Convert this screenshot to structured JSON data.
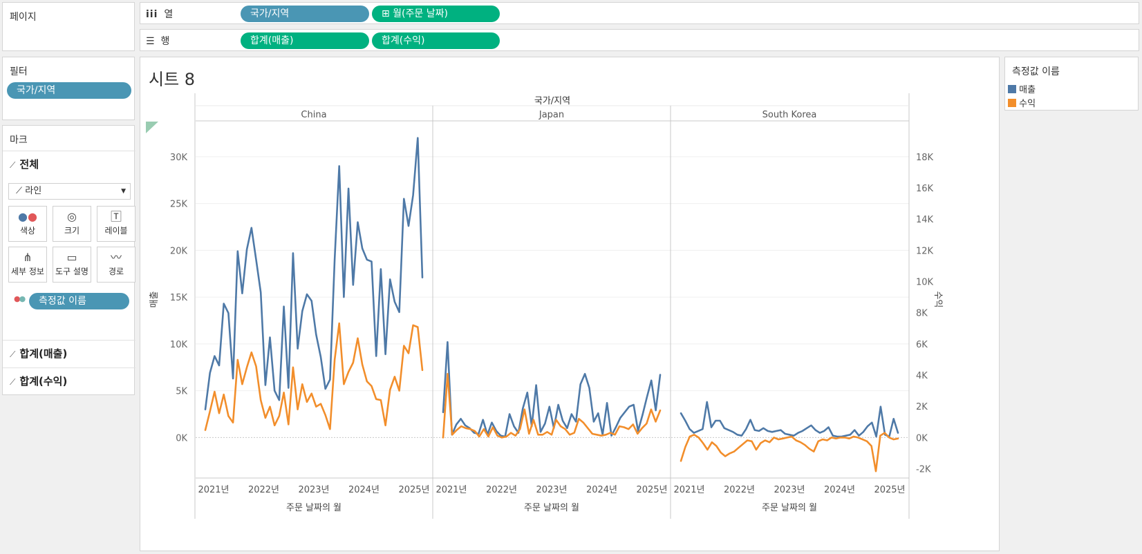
{
  "pages": {
    "title": "페이지"
  },
  "columns_shelf": {
    "label": "열",
    "icon": "columns-icon",
    "pills": [
      "국가/지역",
      "⊞ 월(주문 날짜)"
    ]
  },
  "rows_shelf": {
    "label": "행",
    "icon": "rows-icon",
    "pills": [
      "합계(매출)",
      "합계(수익)"
    ]
  },
  "filters": {
    "title": "필터",
    "pills": [
      "국가/지역"
    ]
  },
  "marks": {
    "title": "마크",
    "all_label": "전체",
    "mark_type": "라인",
    "buttons": [
      {
        "label": "색상",
        "icon": "color-icon"
      },
      {
        "label": "크기",
        "icon": "size-icon"
      },
      {
        "label": "레이블",
        "icon": "label-icon"
      },
      {
        "label": "세부 정보",
        "icon": "detail-icon"
      },
      {
        "label": "도구 설명",
        "icon": "tooltip-icon"
      },
      {
        "label": "경로",
        "icon": "path-icon"
      }
    ],
    "color_pill": "측정값 이름",
    "measure_sections": [
      "합계(매출)",
      "합계(수익)"
    ]
  },
  "legend": {
    "title": "측정값 이름",
    "items": [
      {
        "label": "매출",
        "color": "#4e79a7"
      },
      {
        "label": "수익",
        "color": "#f28e2b"
      }
    ]
  },
  "sheet": {
    "title": "시트 8"
  },
  "chart_data": {
    "type": "line",
    "column_header": "국가/지역",
    "panes": [
      "China",
      "Japan",
      "South Korea"
    ],
    "xlabel": "주문 날짜의 월",
    "x_ticks": [
      "2021년",
      "2022년",
      "2023년",
      "2024년",
      "2025년"
    ],
    "left_axis": {
      "label": "매출",
      "ylim": [
        -4250,
        33750
      ],
      "ticks": [
        "0K",
        "5K",
        "10K",
        "15K",
        "20K",
        "25K",
        "30K"
      ],
      "tick_values": [
        0,
        5000,
        10000,
        15000,
        20000,
        25000,
        30000
      ]
    },
    "right_axis": {
      "label": "수익",
      "ylim": [
        -2550,
        20250
      ],
      "ticks": [
        "-2K",
        "0K",
        "2K",
        "4K",
        "6K",
        "8K",
        "10K",
        "12K",
        "14K",
        "16K",
        "18K"
      ],
      "tick_values": [
        -2000,
        0,
        2000,
        4000,
        6000,
        8000,
        10000,
        12000,
        14000,
        16000,
        18000
      ]
    },
    "series": [
      {
        "name": "매출",
        "color": "#4e79a7",
        "axis": "left",
        "panes": [
          [
            3000,
            6900,
            8700,
            7700,
            14300,
            13300,
            6300,
            19900,
            15400,
            20100,
            22400,
            19000,
            15500,
            5600,
            10700,
            5000,
            4000,
            14000,
            5300,
            19700,
            9500,
            13500,
            15300,
            14600,
            11000,
            8600,
            5200,
            6200,
            19000,
            29000,
            15000,
            26600,
            16300,
            23000,
            20200,
            19000,
            18800,
            8700,
            18000,
            8900,
            16900,
            14500,
            13400,
            25500,
            22600,
            25900,
            32000,
            17100
          ],
          [
            2700,
            10200,
            300,
            1400,
            2000,
            1300,
            1000,
            500,
            400,
            1900,
            300,
            1600,
            700,
            200,
            100,
            2500,
            1200,
            500,
            3100,
            4800,
            1200,
            5600,
            600,
            1500,
            3300,
            1000,
            3500,
            1800,
            1000,
            2500,
            1700,
            5700,
            6800,
            5300,
            1700,
            2600,
            300,
            3700,
            200,
            1100,
            2100,
            2700,
            3300,
            3500,
            700,
            2400,
            4300,
            6100,
            2900,
            6700
          ],
          [
            2600,
            1800,
            900,
            500,
            700,
            900,
            3800,
            1100,
            1800,
            1800,
            1000,
            800,
            600,
            300,
            200,
            900,
            1900,
            800,
            700,
            1000,
            700,
            600,
            700,
            800,
            400,
            300,
            200,
            500,
            700,
            1000,
            1300,
            800,
            500,
            700,
            1100,
            200,
            100,
            100,
            200,
            300,
            800,
            200,
            600,
            1200,
            1600,
            100,
            3300,
            300,
            100,
            2000,
            500
          ]
        ]
      },
      {
        "name": "수익",
        "color": "#f28e2b",
        "axis": "left",
        "panes": [
          [
            800,
            2800,
            4900,
            2600,
            4600,
            2300,
            1600,
            8300,
            5700,
            7500,
            9100,
            7600,
            4000,
            2100,
            3300,
            1300,
            2300,
            4800,
            1400,
            7500,
            3000,
            5700,
            3800,
            4700,
            3300,
            3600,
            2400,
            900,
            8300,
            12200,
            5700,
            7000,
            8000,
            10600,
            7800,
            6000,
            5500,
            4100,
            4000,
            1300,
            5100,
            6500,
            5000,
            9800,
            9000,
            12000,
            11800,
            7200
          ],
          [
            0,
            6800,
            300,
            800,
            1200,
            1000,
            900,
            700,
            100,
            900,
            100,
            1100,
            200,
            0,
            100,
            500,
            200,
            900,
            3000,
            400,
            1900,
            300,
            300,
            600,
            300,
            1900,
            1200,
            900,
            300,
            500,
            2000,
            1600,
            1000,
            400,
            300,
            200,
            300,
            500,
            300,
            1200,
            1100,
            900,
            1400,
            400,
            1000,
            1500,
            3000,
            1700,
            2900
          ],
          [
            -2500,
            -1000,
            100,
            300,
            0,
            -600,
            -1300,
            -500,
            -900,
            -1600,
            -2000,
            -1700,
            -1500,
            -1100,
            -700,
            -300,
            -400,
            -1300,
            -600,
            -300,
            -500,
            0,
            -200,
            -100,
            0,
            100,
            -300,
            -500,
            -800,
            -1200,
            -1500,
            -400,
            -200,
            -300,
            0,
            -100,
            0,
            0,
            -100,
            100,
            0,
            -200,
            -400,
            -900,
            -3600,
            200,
            500,
            0,
            -200,
            -100
          ]
        ]
      }
    ],
    "legend_position": "right",
    "grid": true
  }
}
